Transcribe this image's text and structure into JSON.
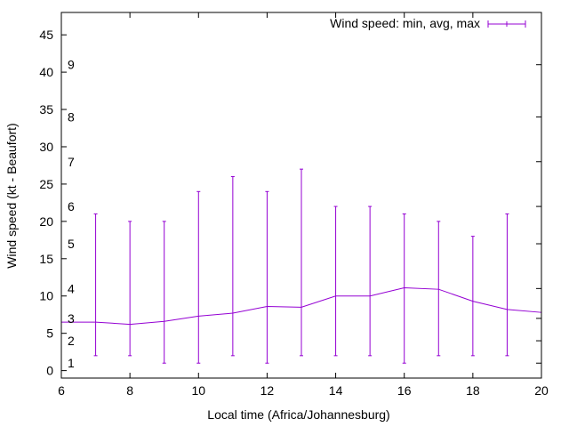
{
  "chart_data": {
    "type": "line",
    "title": "",
    "xlabel": "Local time (Africa/Johannesburg)",
    "ylabel": "Wind speed (kt - Beaufort)",
    "xlim": [
      6,
      20
    ],
    "ylim": [
      -1,
      48
    ],
    "x_ticks": [
      "6",
      "8",
      "10",
      "12",
      "14",
      "16",
      "18",
      "20"
    ],
    "y_ticks": [
      "0",
      "5",
      "10",
      "15",
      "20",
      "25",
      "30",
      "35",
      "40",
      "45"
    ],
    "beaufort_labels": [
      {
        "label": "1",
        "value": 1
      },
      {
        "label": "2",
        "value": 4
      },
      {
        "label": "3",
        "value": 7
      },
      {
        "label": "4",
        "value": 11
      },
      {
        "label": "5",
        "value": 17
      },
      {
        "label": "6",
        "value": 22
      },
      {
        "label": "7",
        "value": 28
      },
      {
        "label": "8",
        "value": 34
      },
      {
        "label": "9",
        "value": 41
      }
    ],
    "legend": {
      "label": "Wind speed: min, avg, max",
      "position": "top-right"
    },
    "series": [
      {
        "name": "Wind speed: min, avg, max",
        "color": "#9400d3",
        "x": [
          6,
          7,
          8,
          9,
          10,
          11,
          12,
          13,
          14,
          15,
          16,
          17,
          18,
          19,
          20
        ],
        "avg": [
          6.5,
          6.5,
          6.2,
          6.6,
          7.3,
          7.7,
          8.6,
          8.5,
          10.0,
          10.0,
          11.1,
          10.9,
          9.3,
          8.2,
          7.8
        ],
        "errorbars": [
          {
            "x": 7,
            "min": 2,
            "max": 21
          },
          {
            "x": 8,
            "min": 2,
            "max": 20
          },
          {
            "x": 9,
            "min": 1,
            "max": 20
          },
          {
            "x": 10,
            "min": 1,
            "max": 24
          },
          {
            "x": 11,
            "min": 2,
            "max": 26
          },
          {
            "x": 12,
            "min": 1,
            "max": 24
          },
          {
            "x": 13,
            "min": 2,
            "max": 27
          },
          {
            "x": 14,
            "min": 2,
            "max": 22
          },
          {
            "x": 15,
            "min": 2,
            "max": 22
          },
          {
            "x": 16,
            "min": 1,
            "max": 21
          },
          {
            "x": 17,
            "min": 2,
            "max": 20
          },
          {
            "x": 18,
            "min": 2,
            "max": 18
          },
          {
            "x": 19,
            "min": 2,
            "max": 21
          }
        ]
      }
    ]
  }
}
